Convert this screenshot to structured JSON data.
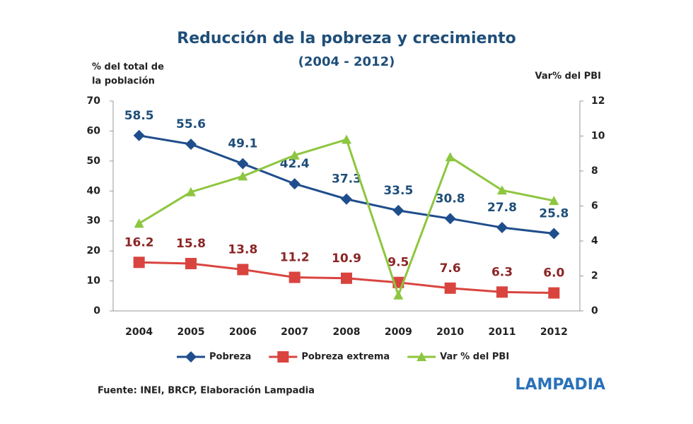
{
  "chart_data": {
    "type": "line",
    "title": "Reducción de la pobreza y crecimiento",
    "subtitle": "(2004 - 2012)",
    "y_label": [
      "% del total de",
      "la población"
    ],
    "y2_label": "Var% del PBI",
    "categories": [
      "2004",
      "2005",
      "2006",
      "2007",
      "2008",
      "2009",
      "2010",
      "2011",
      "2012"
    ],
    "series": [
      {
        "name": "Pobreza",
        "color": "#1f4e8c",
        "marker": "diamond",
        "values": [
          58.5,
          55.6,
          49.1,
          42.4,
          37.3,
          33.5,
          30.8,
          27.8,
          25.8
        ],
        "value_labels": [
          "58.5",
          "55.6",
          "49.1",
          "42.4",
          "37.3",
          "33.5",
          "30.8",
          "27.8",
          "25.8"
        ]
      },
      {
        "name": "Pobreza extrema",
        "color": "#d9443f",
        "marker": "square",
        "values": [
          16.2,
          15.8,
          13.8,
          11.2,
          10.9,
          9.5,
          7.6,
          6.3,
          6.0
        ],
        "value_labels": [
          "16.2",
          "15.8",
          "13.8",
          "11.2",
          "10.9",
          "9.5",
          "7.6",
          "6.3",
          "6.0"
        ]
      },
      {
        "name": "Var % del PBI",
        "color": "#8dc63f",
        "marker": "triangle",
        "axis": "y2",
        "values": [
          5.0,
          6.8,
          7.7,
          8.9,
          9.8,
          0.9,
          8.8,
          6.9,
          6.3
        ]
      }
    ],
    "ylim": [
      0,
      70
    ],
    "yticks": [
      0,
      10,
      20,
      30,
      40,
      50,
      60,
      70
    ],
    "y2lim": [
      0,
      12
    ],
    "y2ticks": [
      0,
      2,
      4,
      6,
      8,
      10,
      12
    ],
    "legend": "bottom",
    "source": "Fuente: INEI, BRCP, Elaboración Lampadia",
    "logo": "LAMPADIA"
  }
}
